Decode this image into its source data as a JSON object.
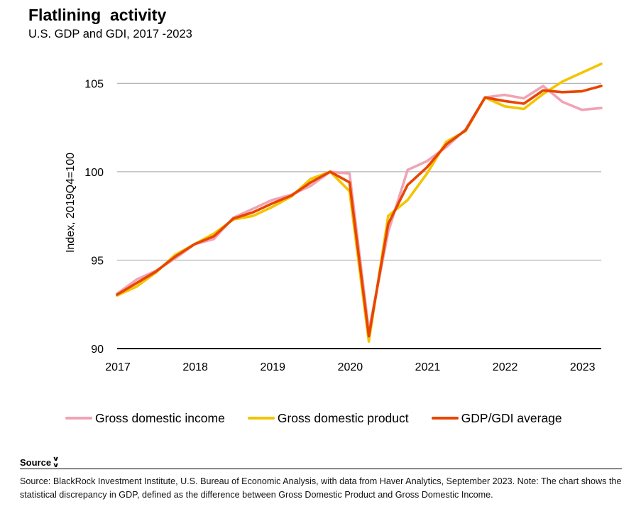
{
  "header": {
    "title": "Flatlining  activity",
    "subtitle": "U.S. GDP and GDI, 2017 -2023"
  },
  "source": {
    "toggle_label": "Source",
    "text": "Source: BlackRock Investment Institute, U.S. Bureau of Economic Analysis, with data from Haver Analytics, September 2023. Note: The chart shows the statistical discrepancy in GDP, defined as the difference between Gross Domestic Product and Gross Domestic Income."
  },
  "chart_data": {
    "type": "line",
    "ylabel": "Index, 2019Q4=100",
    "xlabel": "",
    "ylim": [
      90,
      106.5
    ],
    "yticks": [
      90,
      95,
      100,
      105
    ],
    "xlim": [
      2017.0,
      2023.25
    ],
    "xticks": [
      {
        "value": 2017,
        "label": "2017"
      },
      {
        "value": 2018,
        "label": "2018"
      },
      {
        "value": 2019,
        "label": "2019"
      },
      {
        "value": 2020,
        "label": "2020"
      },
      {
        "value": 2021,
        "label": "2021"
      },
      {
        "value": 2022,
        "label": "2022"
      },
      {
        "value": 2023,
        "label": "2023"
      }
    ],
    "grid": "horizontal",
    "legend_position": "bottom",
    "x": [
      "2017Q1",
      "2017Q2",
      "2017Q3",
      "2017Q4",
      "2018Q1",
      "2018Q2",
      "2018Q3",
      "2018Q4",
      "2019Q1",
      "2019Q2",
      "2019Q3",
      "2019Q4",
      "2020Q1",
      "2020Q2",
      "2020Q3",
      "2020Q4",
      "2021Q1",
      "2021Q2",
      "2021Q3",
      "2021Q4",
      "2022Q1",
      "2022Q2",
      "2022Q3",
      "2022Q4",
      "2023Q1",
      "2023Q2"
    ],
    "series": [
      {
        "name": "Gross domestic income",
        "color": "#f0a3b5",
        "values": [
          93.1,
          93.9,
          94.4,
          95.1,
          95.9,
          96.2,
          97.4,
          97.9,
          98.4,
          98.7,
          99.2,
          100.0,
          99.9,
          91.0,
          96.6,
          100.1,
          100.6,
          101.4,
          102.4,
          104.2,
          104.35,
          104.15,
          104.85,
          103.95,
          103.5,
          103.6
        ]
      },
      {
        "name": "Gross domestic product",
        "color": "#f2c500",
        "values": [
          93.0,
          93.5,
          94.3,
          95.3,
          95.9,
          96.5,
          97.3,
          97.5,
          98.0,
          98.6,
          99.6,
          100.0,
          98.9,
          90.4,
          97.5,
          98.4,
          99.9,
          101.7,
          102.3,
          104.2,
          103.7,
          103.55,
          104.4,
          105.1,
          105.6,
          106.1
        ]
      },
      {
        "name": "GDP/GDI average",
        "color": "#e84500",
        "values": [
          93.05,
          93.7,
          94.35,
          95.2,
          95.9,
          96.35,
          97.35,
          97.7,
          98.2,
          98.65,
          99.4,
          100.0,
          99.4,
          90.7,
          97.05,
          99.25,
          100.25,
          101.55,
          102.35,
          104.2,
          104.0,
          103.85,
          104.6,
          104.5,
          104.55,
          104.85
        ]
      }
    ]
  }
}
